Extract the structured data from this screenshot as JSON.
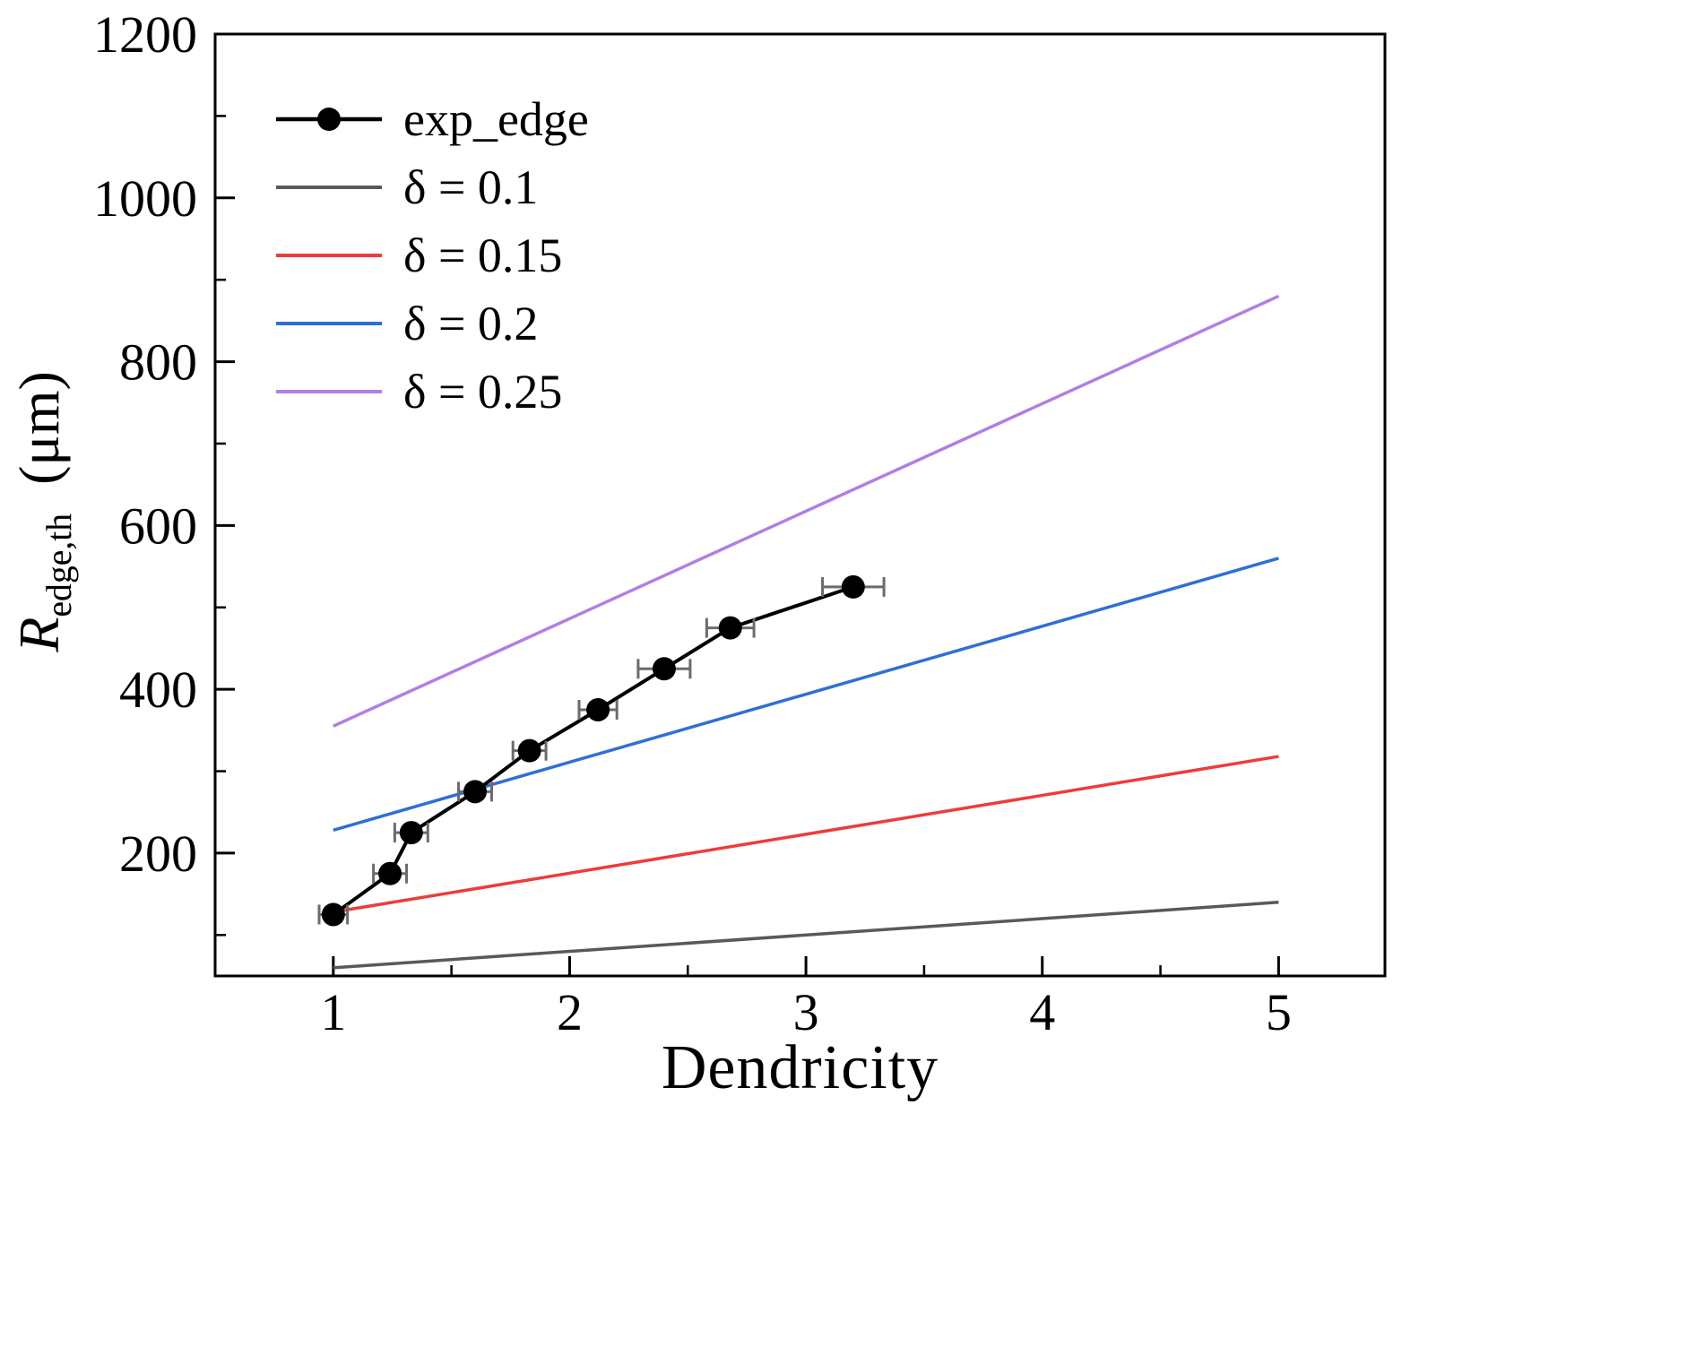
{
  "chart_data": {
    "type": "line",
    "title": "",
    "xlabel": "Dendricity",
    "ylabel": {
      "symbol": "R",
      "subscript": "edge,th",
      "unit": "(μm)"
    },
    "xlim": [
      0.5,
      5.45
    ],
    "ylim": [
      50,
      1200
    ],
    "xticks": [
      1,
      2,
      3,
      4,
      5
    ],
    "yticks": [
      200,
      400,
      600,
      800,
      1000,
      1200
    ],
    "x_minor_step": 0.5,
    "y_minor_step": 100,
    "grid": false,
    "legend_position": "top-left",
    "error_bar_color": "#6b6b6b",
    "frame_color": "#000000",
    "series": [
      {
        "name": "exp_edge",
        "kind": "scatter-line",
        "color": "#000000",
        "marker": "circle",
        "line_width": 4,
        "points": [
          {
            "x": 1.0,
            "y": 125,
            "xerr": 0.06
          },
          {
            "x": 1.24,
            "y": 175,
            "xerr": 0.07
          },
          {
            "x": 1.33,
            "y": 225,
            "xerr": 0.07
          },
          {
            "x": 1.6,
            "y": 275,
            "xerr": 0.07
          },
          {
            "x": 1.83,
            "y": 325,
            "xerr": 0.07
          },
          {
            "x": 2.12,
            "y": 375,
            "xerr": 0.08
          },
          {
            "x": 2.4,
            "y": 425,
            "xerr": 0.11
          },
          {
            "x": 2.68,
            "y": 475,
            "xerr": 0.1
          },
          {
            "x": 3.2,
            "y": 525,
            "xerr": 0.13
          }
        ]
      },
      {
        "name": "δ = 0.1",
        "kind": "line",
        "color": "#595959",
        "line_width": 3.5,
        "points": [
          {
            "x": 1,
            "y": 60
          },
          {
            "x": 5,
            "y": 140
          }
        ]
      },
      {
        "name": "δ = 0.15",
        "kind": "line",
        "color": "#ee3b3b",
        "line_width": 3.5,
        "points": [
          {
            "x": 1,
            "y": 128
          },
          {
            "x": 5,
            "y": 318
          }
        ]
      },
      {
        "name": "δ = 0.2",
        "kind": "line",
        "color": "#2e6fd8",
        "line_width": 3.5,
        "points": [
          {
            "x": 1,
            "y": 228
          },
          {
            "x": 5,
            "y": 560
          }
        ]
      },
      {
        "name": "δ = 0.25",
        "kind": "line",
        "color": "#b07fe6",
        "line_width": 3.5,
        "points": [
          {
            "x": 1,
            "y": 355
          },
          {
            "x": 5,
            "y": 880
          }
        ]
      }
    ]
  }
}
